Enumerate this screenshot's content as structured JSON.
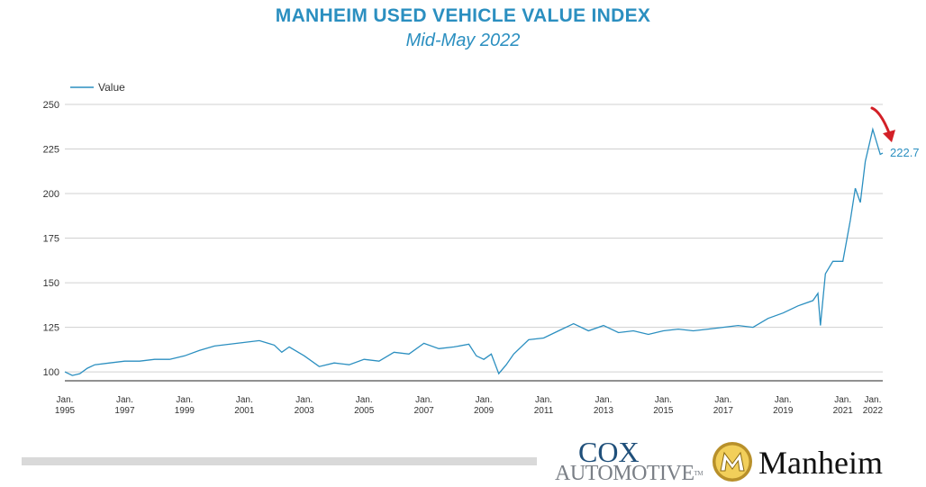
{
  "chart_data": {
    "type": "line",
    "title": "MANHEIM USED VEHICLE VALUE INDEX",
    "subtitle": "Mid-May 2022",
    "legend": {
      "placement": "top-left",
      "label": "Value"
    },
    "series": [
      {
        "name": "Value",
        "color": "#2b8fc0",
        "points": [
          [
            "1995-01",
            100
          ],
          [
            "1995-04",
            98
          ],
          [
            "1995-07",
            99
          ],
          [
            "1995-10",
            102
          ],
          [
            "1996-01",
            104
          ],
          [
            "1996-07",
            105
          ],
          [
            "1997-01",
            106
          ],
          [
            "1997-07",
            106
          ],
          [
            "1998-01",
            107
          ],
          [
            "1998-07",
            107
          ],
          [
            "1999-01",
            109
          ],
          [
            "1999-07",
            112
          ],
          [
            "2000-01",
            114.5
          ],
          [
            "2000-07",
            115.5
          ],
          [
            "2001-01",
            116.5
          ],
          [
            "2001-07",
            117.5
          ],
          [
            "2002-01",
            115
          ],
          [
            "2002-04",
            111
          ],
          [
            "2002-07",
            114
          ],
          [
            "2003-01",
            109
          ],
          [
            "2003-07",
            103
          ],
          [
            "2004-01",
            105
          ],
          [
            "2004-07",
            104
          ],
          [
            "2005-01",
            107
          ],
          [
            "2005-07",
            106
          ],
          [
            "2006-01",
            111
          ],
          [
            "2006-07",
            110
          ],
          [
            "2007-01",
            116
          ],
          [
            "2007-07",
            113
          ],
          [
            "2008-01",
            114
          ],
          [
            "2008-07",
            115.5
          ],
          [
            "2008-10",
            109
          ],
          [
            "2009-01",
            107
          ],
          [
            "2009-04",
            110
          ],
          [
            "2009-07",
            99
          ],
          [
            "2009-10",
            104
          ],
          [
            "2010-01",
            110
          ],
          [
            "2010-07",
            118
          ],
          [
            "2011-01",
            119
          ],
          [
            "2011-07",
            123
          ],
          [
            "2012-01",
            127
          ],
          [
            "2012-07",
            123
          ],
          [
            "2013-01",
            126
          ],
          [
            "2013-07",
            122
          ],
          [
            "2014-01",
            123
          ],
          [
            "2014-07",
            121
          ],
          [
            "2015-01",
            123
          ],
          [
            "2015-07",
            124
          ],
          [
            "2016-01",
            123
          ],
          [
            "2016-07",
            124
          ],
          [
            "2017-01",
            125
          ],
          [
            "2017-07",
            126
          ],
          [
            "2018-01",
            125
          ],
          [
            "2018-07",
            130
          ],
          [
            "2019-01",
            133
          ],
          [
            "2019-07",
            137
          ],
          [
            "2020-01",
            140
          ],
          [
            "2020-03",
            144
          ],
          [
            "2020-04",
            126
          ],
          [
            "2020-06",
            155
          ],
          [
            "2020-09",
            162
          ],
          [
            "2021-01",
            162
          ],
          [
            "2021-04",
            185
          ],
          [
            "2021-06",
            203
          ],
          [
            "2021-08",
            195
          ],
          [
            "2021-10",
            218
          ],
          [
            "2022-01",
            236
          ],
          [
            "2022-04",
            222
          ],
          [
            "2022-05",
            222.7
          ]
        ]
      }
    ],
    "x_ticks": [
      {
        "date": "1995-01",
        "line1": "Jan.",
        "line2": "1995"
      },
      {
        "date": "1997-01",
        "line1": "Jan.",
        "line2": "1997"
      },
      {
        "date": "1999-01",
        "line1": "Jan.",
        "line2": "1999"
      },
      {
        "date": "2001-01",
        "line1": "Jan.",
        "line2": "2001"
      },
      {
        "date": "2003-01",
        "line1": "Jan.",
        "line2": "2003"
      },
      {
        "date": "2005-01",
        "line1": "Jan.",
        "line2": "2005"
      },
      {
        "date": "2007-01",
        "line1": "Jan.",
        "line2": "2007"
      },
      {
        "date": "2009-01",
        "line1": "Jan.",
        "line2": "2009"
      },
      {
        "date": "2011-01",
        "line1": "Jan.",
        "line2": "2011"
      },
      {
        "date": "2013-01",
        "line1": "Jan.",
        "line2": "2013"
      },
      {
        "date": "2015-01",
        "line1": "Jan.",
        "line2": "2015"
      },
      {
        "date": "2017-01",
        "line1": "Jan.",
        "line2": "2017"
      },
      {
        "date": "2019-01",
        "line1": "Jan.",
        "line2": "2019"
      },
      {
        "date": "2021-01",
        "line1": "Jan.",
        "line2": "2021"
      },
      {
        "date": "2022-01",
        "line1": "Jan.",
        "line2": "2022"
      }
    ],
    "y_ticks": [
      100,
      125,
      150,
      175,
      200,
      225,
      250
    ],
    "ylim": [
      95,
      250
    ],
    "xlim": [
      "1995-01",
      "2022-05"
    ],
    "grid": true,
    "annotation": {
      "label": "222.7",
      "value": 222.7,
      "date": "2022-05",
      "arrow_color": "#d32027"
    }
  },
  "footer": {
    "cox_top": "COX",
    "cox_bottom": "AUTOMOTIVE",
    "cox_tm": "TM",
    "manheim_text": "Manheim"
  }
}
